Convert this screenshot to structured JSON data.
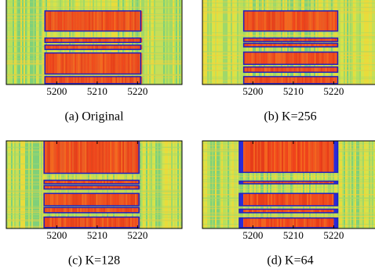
{
  "chart_data": [
    {
      "type": "spectrogram",
      "title": "(a) Original",
      "xlim": [
        5187.5,
        5231
      ],
      "xticks": [
        5200,
        5210,
        5220
      ]
    },
    {
      "type": "spectrogram",
      "title": "(b) K=256",
      "xlim": [
        5187.5,
        5231
      ],
      "xticks": [
        5200,
        5210,
        5220
      ]
    },
    {
      "type": "spectrogram",
      "title": "(c) K=128",
      "xlim": [
        5187.5,
        5231
      ],
      "xticks": [
        5200,
        5210,
        5220
      ]
    },
    {
      "type": "spectrogram",
      "title": "(d) K=64",
      "xlim": [
        5187.5,
        5231
      ],
      "xticks": [
        5200,
        5210,
        5220
      ]
    }
  ]
}
